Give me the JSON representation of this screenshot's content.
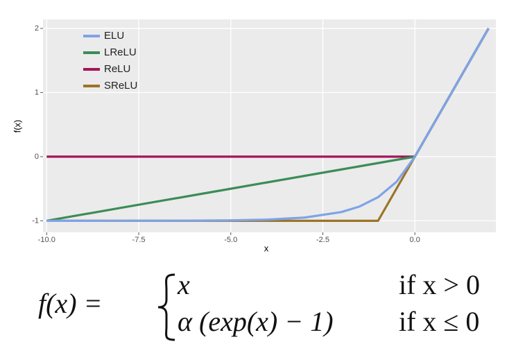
{
  "chart_data": {
    "type": "line",
    "x": [
      -10,
      -9,
      -8,
      -7,
      -6,
      -5,
      -4,
      -3,
      -2,
      -1.5,
      -1,
      -0.5,
      0,
      1,
      2
    ],
    "series": [
      {
        "name": "ELU",
        "color": "#7fa3e6",
        "values": [
          -0.99995,
          -0.9999,
          -0.9997,
          -0.9991,
          -0.9975,
          -0.9933,
          -0.9817,
          -0.9502,
          -0.8647,
          -0.7769,
          -0.6321,
          -0.3935,
          0,
          1,
          2
        ]
      },
      {
        "name": "LReLU",
        "color": "#3c8c58",
        "values": [
          -1,
          -0.9,
          -0.8,
          -0.7,
          -0.6,
          -0.5,
          -0.4,
          -0.3,
          -0.2,
          -0.15,
          -0.1,
          -0.05,
          0,
          1,
          2
        ]
      },
      {
        "name": "ReLU",
        "color": "#a3145c",
        "values": [
          0,
          0,
          0,
          0,
          0,
          0,
          0,
          0,
          0,
          0,
          0,
          0,
          0,
          1,
          2
        ]
      },
      {
        "name": "SReLU",
        "color": "#9c7428",
        "values": [
          -1,
          -1,
          -1,
          -1,
          -1,
          -1,
          -1,
          -1,
          -1,
          -1,
          -1,
          -0.5,
          0,
          1,
          2
        ]
      }
    ],
    "x_label": "x",
    "y_label": "f(x)",
    "xlim": [
      -10.1,
      2.2
    ],
    "ylim": [
      -1.18,
      2.14
    ],
    "xticks": [
      {
        "value": -10,
        "label": "-10.0"
      },
      {
        "value": -7.5,
        "label": "-7.5"
      },
      {
        "value": -5,
        "label": "-5.0"
      },
      {
        "value": -2.5,
        "label": "-2.5"
      },
      {
        "value": 0,
        "label": "0.0"
      }
    ],
    "yticks": [
      -1,
      0,
      1,
      2
    ],
    "grid": true,
    "legend": "top-left"
  },
  "formula": {
    "lhs": "f(x)  =",
    "cases": [
      {
        "expr": "x",
        "cond": "if x > 0"
      },
      {
        "expr": "α (exp(x) − 1)",
        "cond": "if x ≤ 0"
      }
    ]
  }
}
